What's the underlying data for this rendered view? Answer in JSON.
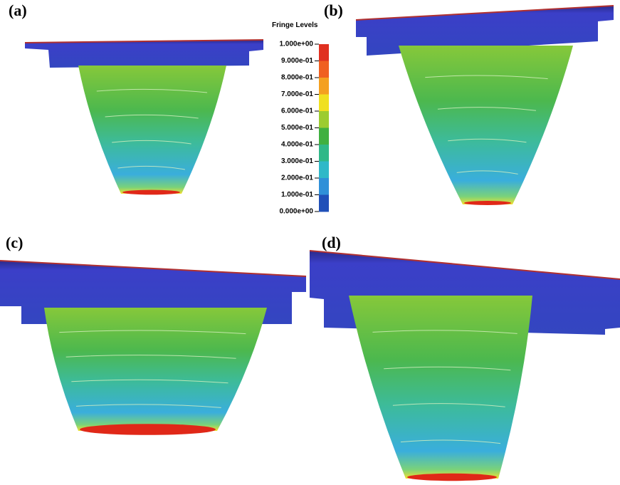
{
  "panels": [
    {
      "label": "(a)"
    },
    {
      "label": "(b)"
    },
    {
      "label": "(c)"
    },
    {
      "label": "(d)"
    }
  ],
  "legend": {
    "title": "Fringe Levels",
    "labels": [
      "1.000e+00",
      "9.000e-01",
      "8.000e-01",
      "7.000e-01",
      "6.000e-01",
      "5.000e-01",
      "4.000e-01",
      "3.000e-01",
      "2.000e-01",
      "1.000e-01",
      "0.000e+00"
    ]
  }
}
